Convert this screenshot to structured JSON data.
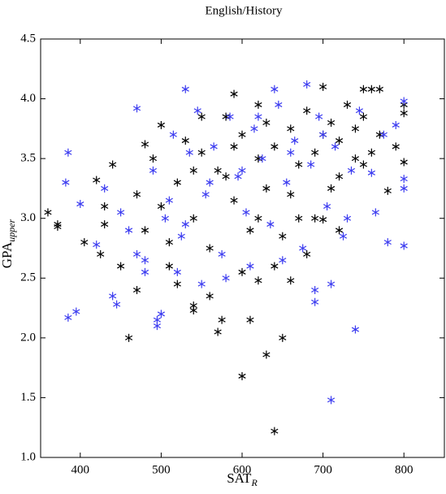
{
  "chart_data": {
    "type": "scatter",
    "title": "English/History",
    "xlabel": {
      "main": "SAT",
      "sub": "R"
    },
    "ylabel": {
      "main": "GPA",
      "sub": "upper"
    },
    "xlim": [
      351,
      850
    ],
    "ylim": [
      1.0,
      4.5
    ],
    "xticks": [
      400,
      500,
      600,
      700,
      800
    ],
    "yticks": [
      {
        "value": 1.0,
        "label": "1.0"
      },
      1.5,
      {
        "value": 2.0,
        "label": "2.0"
      },
      2.5,
      {
        "value": 3.0,
        "label": "3.0"
      },
      3.5,
      {
        "value": 4.0,
        "label": "4.0"
      },
      4.5
    ],
    "marker": "asterisk",
    "series": [
      {
        "color": "#000000",
        "x": [
          360,
          372,
          372,
          640,
          600,
          630,
          650,
          460,
          610,
          405,
          450,
          750,
          760,
          770,
          700,
          590,
          800,
          780,
          800,
          720,
          700,
          690,
          620,
          575,
          540,
          540,
          660,
          620,
          570,
          420,
          425,
          430,
          440,
          470,
          480,
          490,
          500,
          510,
          520,
          530,
          540,
          550,
          560,
          570,
          580,
          590,
          600,
          610,
          620,
          630,
          640,
          650,
          660,
          670,
          680,
          690,
          710,
          720,
          730,
          740,
          750,
          760,
          770,
          800,
          520,
          560,
          600,
          640,
          680,
          720,
          480,
          500,
          540,
          580,
          620,
          660,
          700,
          740,
          430,
          470,
          510,
          550,
          590,
          630,
          670,
          710,
          750,
          790
        ],
        "y": [
          3.05,
          2.93,
          2.95,
          1.22,
          1.68,
          1.86,
          2.0,
          2.0,
          2.15,
          2.8,
          2.6,
          4.08,
          4.08,
          4.08,
          4.1,
          4.04,
          3.95,
          3.23,
          3.47,
          3.35,
          2.99,
          3.0,
          3.0,
          2.15,
          2.23,
          2.27,
          2.48,
          2.48,
          2.05,
          3.32,
          2.7,
          3.1,
          3.45,
          3.2,
          2.9,
          3.5,
          3.78,
          2.6,
          3.3,
          3.65,
          3.0,
          3.55,
          2.75,
          3.4,
          3.85,
          3.15,
          3.7,
          2.9,
          3.95,
          3.25,
          3.6,
          2.85,
          3.75,
          3.45,
          3.9,
          3.55,
          3.8,
          3.65,
          3.95,
          3.5,
          3.85,
          3.55,
          3.7,
          3.88,
          2.45,
          2.35,
          2.55,
          2.6,
          2.7,
          2.9,
          3.62,
          3.1,
          3.4,
          3.35,
          3.5,
          3.2,
          3.7,
          3.75,
          2.95,
          2.4,
          2.8,
          3.85,
          3.6,
          3.8,
          3.0,
          3.25,
          3.45,
          3.6
        ]
      },
      {
        "color": "#3c3cf0",
        "x": [
          710,
          740,
          385,
          395,
          400,
          385,
          382,
          800,
          800,
          800,
          780,
          760,
          680,
          530,
          640,
          800,
          790,
          710,
          690,
          495,
          495,
          440,
          445,
          500,
          420,
          430,
          450,
          460,
          470,
          480,
          490,
          505,
          515,
          525,
          535,
          545,
          555,
          565,
          575,
          585,
          595,
          605,
          615,
          625,
          635,
          645,
          655,
          665,
          675,
          685,
          695,
          705,
          715,
          725,
          735,
          745,
          765,
          775,
          520,
          550,
          580,
          610,
          650,
          690,
          730,
          470,
          510,
          560,
          600,
          660,
          700,
          480,
          530,
          620
        ],
        "y": [
          1.48,
          2.07,
          2.17,
          2.22,
          3.12,
          3.55,
          3.3,
          2.77,
          3.25,
          3.33,
          2.8,
          3.38,
          4.12,
          4.08,
          4.08,
          3.98,
          3.78,
          2.45,
          2.3,
          2.1,
          2.15,
          2.35,
          2.28,
          2.2,
          2.78,
          3.25,
          3.05,
          2.9,
          3.92,
          2.65,
          3.4,
          3.0,
          3.7,
          2.85,
          3.55,
          3.9,
          3.2,
          3.6,
          2.7,
          3.85,
          3.35,
          3.05,
          3.75,
          3.5,
          2.95,
          3.95,
          3.3,
          3.65,
          2.75,
          3.45,
          3.85,
          3.1,
          3.6,
          2.85,
          3.4,
          3.9,
          3.05,
          3.7,
          2.55,
          2.45,
          2.5,
          2.6,
          2.65,
          2.4,
          3.0,
          2.7,
          3.15,
          3.3,
          3.4,
          3.55,
          3.7,
          2.55,
          2.95,
          3.85
        ]
      }
    ]
  }
}
